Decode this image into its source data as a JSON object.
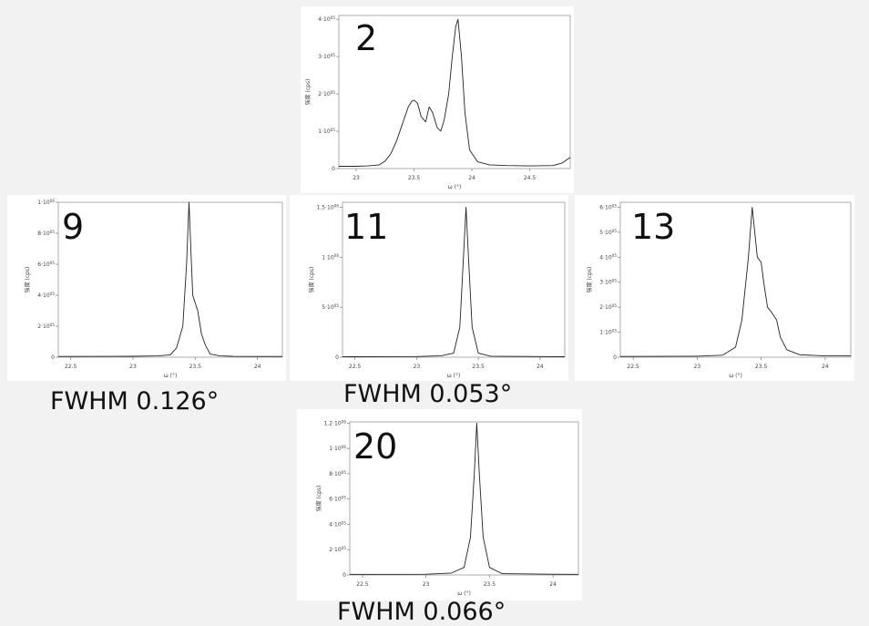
{
  "charts": [
    {
      "id": "2",
      "label": "2",
      "ylabel": "強度 (cps)",
      "xlabel": "ω (°)",
      "ytick_labels": [
        "0",
        "1·10^05",
        "2·10^05",
        "3·10^05",
        "4·10^05"
      ],
      "xtick_labels": [
        "23",
        "23.5",
        "24",
        "24.5"
      ],
      "fwhm": ""
    },
    {
      "id": "9",
      "label": "9",
      "ylabel": "強度 (cps)",
      "xlabel": "ω (°)",
      "ytick_labels": [
        "0",
        "2·10^05",
        "4·10^05",
        "6·10^05",
        "8·10^05",
        "1·10^06"
      ],
      "xtick_labels": [
        "22.5",
        "23",
        "23.5",
        "24"
      ],
      "fwhm": "FWHM 0.126°"
    },
    {
      "id": "11",
      "label": "11",
      "ylabel": "強度 (cps)",
      "xlabel": "ω (°)",
      "ytick_labels": [
        "0",
        "5·10^05",
        "1·10^06",
        "1.5·10^06"
      ],
      "xtick_labels": [
        "22.5",
        "23",
        "23.5",
        "24"
      ],
      "fwhm": "FWHM 0.053°"
    },
    {
      "id": "13",
      "label": "13",
      "ylabel": "強度 (cps)",
      "xlabel": "ω (°)",
      "ytick_labels": [
        "0",
        "1·10^05",
        "2·10^05",
        "3·10^05",
        "4·10^05",
        "5·10^05",
        "6·10^05"
      ],
      "xtick_labels": [
        "22.5",
        "23",
        "23.5",
        "24"
      ],
      "fwhm": ""
    },
    {
      "id": "20",
      "label": "20",
      "ylabel": "強度 (cps)",
      "xlabel": "ω (°)",
      "ytick_labels": [
        "0",
        "2·10^05",
        "4·10^05",
        "6·10^05",
        "8·10^05",
        "1·10^06",
        "1.2·10^06"
      ],
      "xtick_labels": [
        "22.5",
        "23",
        "23.5",
        "24"
      ],
      "fwhm": "FWHM 0.066°"
    }
  ],
  "chart_data": [
    {
      "type": "line",
      "label": "2",
      "xlabel": "ω (°)",
      "ylabel": "強度 (cps)",
      "xlim": [
        22.85,
        24.85
      ],
      "ylim": [
        0,
        410000
      ],
      "xticks": [
        23,
        23.5,
        24,
        24.5
      ],
      "yticks": [
        0,
        100000,
        200000,
        300000,
        400000
      ],
      "x": [
        22.85,
        23.0,
        23.1,
        23.2,
        23.25,
        23.3,
        23.35,
        23.4,
        23.45,
        23.48,
        23.5,
        23.53,
        23.56,
        23.6,
        23.63,
        23.66,
        23.7,
        23.73,
        23.76,
        23.8,
        23.83,
        23.86,
        23.88,
        23.91,
        23.94,
        23.98,
        24.05,
        24.15,
        24.3,
        24.5,
        24.7,
        24.78,
        24.85
      ],
      "y": [
        6000,
        6000,
        7000,
        10000,
        20000,
        40000,
        75000,
        120000,
        165000,
        180000,
        183000,
        175000,
        140000,
        125000,
        165000,
        150000,
        110000,
        100000,
        130000,
        200000,
        300000,
        380000,
        400000,
        300000,
        150000,
        50000,
        18000,
        10000,
        8000,
        7000,
        8000,
        15000,
        30000
      ]
    },
    {
      "type": "line",
      "label": "9",
      "xlabel": "ω (°)",
      "ylabel": "強度 (cps)",
      "xlim": [
        22.4,
        24.2
      ],
      "ylim": [
        0,
        1000000
      ],
      "xticks": [
        22.5,
        23,
        23.5,
        24
      ],
      "yticks": [
        0,
        200000,
        400000,
        600000,
        800000,
        1000000
      ],
      "x": [
        22.4,
        23.0,
        23.2,
        23.3,
        23.35,
        23.4,
        23.43,
        23.45,
        23.47,
        23.48,
        23.5,
        23.52,
        23.55,
        23.58,
        23.62,
        23.7,
        23.8,
        24.0,
        24.2
      ],
      "y": [
        5000,
        6000,
        8000,
        15000,
        60000,
        200000,
        600000,
        1000000,
        600000,
        400000,
        350000,
        300000,
        150000,
        80000,
        20000,
        8000,
        6000,
        5000,
        5000
      ]
    },
    {
      "type": "line",
      "label": "11",
      "xlabel": "ω (°)",
      "ylabel": "強度 (cps)",
      "xlim": [
        22.4,
        24.2
      ],
      "ylim": [
        0,
        1550000
      ],
      "xticks": [
        22.5,
        23,
        23.5,
        24
      ],
      "yticks": [
        0,
        500000,
        1000000,
        1500000
      ],
      "x": [
        22.4,
        23.0,
        23.2,
        23.3,
        23.35,
        23.38,
        23.4,
        23.42,
        23.45,
        23.5,
        23.6,
        24.0,
        24.2
      ],
      "y": [
        5000,
        6000,
        15000,
        40000,
        300000,
        1000000,
        1500000,
        1000000,
        300000,
        40000,
        10000,
        6000,
        5000
      ]
    },
    {
      "type": "line",
      "label": "13",
      "xlabel": "ω (°)",
      "ylabel": "強度 (cps)",
      "xlim": [
        22.4,
        24.2
      ],
      "ylim": [
        0,
        620000
      ],
      "xticks": [
        22.5,
        23,
        23.5,
        24
      ],
      "yticks": [
        0,
        100000,
        200000,
        300000,
        400000,
        500000,
        600000
      ],
      "x": [
        22.4,
        23.0,
        23.2,
        23.3,
        23.35,
        23.4,
        23.43,
        23.45,
        23.47,
        23.5,
        23.52,
        23.55,
        23.58,
        23.62,
        23.65,
        23.7,
        23.8,
        24.0,
        24.2
      ],
      "y": [
        3000,
        4000,
        8000,
        40000,
        150000,
        400000,
        600000,
        500000,
        400000,
        380000,
        300000,
        200000,
        180000,
        150000,
        80000,
        30000,
        10000,
        5000,
        5000
      ]
    },
    {
      "type": "line",
      "label": "20",
      "xlabel": "ω (°)",
      "ylabel": "強度 (cps)",
      "xlim": [
        22.4,
        24.2
      ],
      "ylim": [
        0,
        1210000
      ],
      "xticks": [
        22.5,
        23,
        23.5,
        24
      ],
      "yticks": [
        0,
        200000,
        400000,
        600000,
        800000,
        1000000,
        1200000
      ],
      "x": [
        22.4,
        23.0,
        23.2,
        23.3,
        23.35,
        23.38,
        23.4,
        23.42,
        23.45,
        23.5,
        23.6,
        24.0,
        24.2
      ],
      "y": [
        5000,
        6000,
        15000,
        60000,
        300000,
        800000,
        1200000,
        800000,
        300000,
        60000,
        10000,
        6000,
        5000
      ]
    }
  ]
}
